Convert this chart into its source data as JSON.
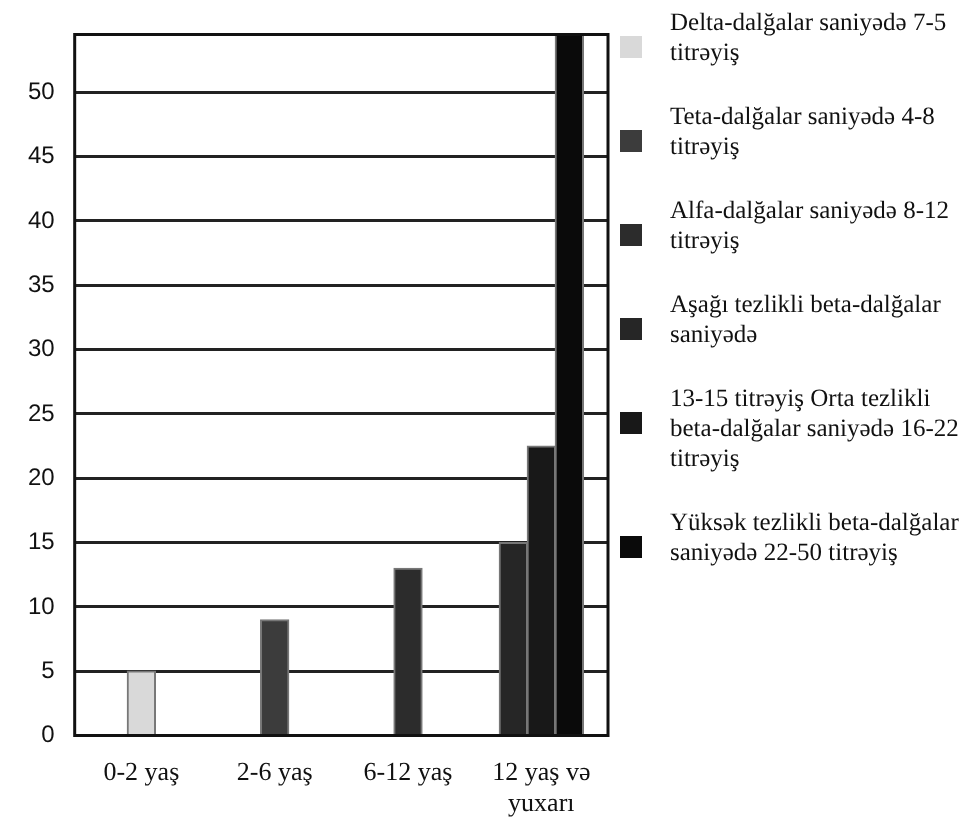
{
  "chart_data": {
    "type": "bar",
    "categories": [
      "0-2 yaş",
      "2-6 yaş",
      "6-12 yaş",
      "12 yaş və yuxarı"
    ],
    "series": [
      {
        "name": "Delta-dalğalar saniyədə 7-5 titrəyiş",
        "color": "#d9d9d9",
        "values": [
          5,
          null,
          null,
          null
        ]
      },
      {
        "name": "Teta-dalğalar saniyədə 4-8 titrəyiş",
        "color": "#3c3c3c",
        "values": [
          null,
          9,
          null,
          null
        ]
      },
      {
        "name": "Alfa-dalğalar saniyədə 8-12 titrəyiş",
        "color": "#2c2c2c",
        "values": [
          null,
          null,
          13,
          null
        ]
      },
      {
        "name": "Aşağı tezlikli beta-dalğalar saniyədə",
        "color": "#262626",
        "values": [
          null,
          null,
          null,
          15
        ]
      },
      {
        "name": "13-15 titrəyiş Orta tezlikli beta-dalğalar saniyədə 16-22 titrəyiş",
        "color": "#181818",
        "values": [
          null,
          null,
          null,
          22.5
        ]
      },
      {
        "name": "Yüksək tezlikli beta-dalğalar saniyədə 22-50 titrəyiş",
        "color": "#0a0a0a",
        "values": [
          null,
          null,
          null,
          54.5
        ]
      }
    ],
    "ylim": [
      0,
      54.5
    ],
    "yticks": [
      0,
      5,
      10,
      15,
      20,
      25,
      30,
      35,
      40,
      45,
      50
    ],
    "grid": "y",
    "legend": "right"
  }
}
